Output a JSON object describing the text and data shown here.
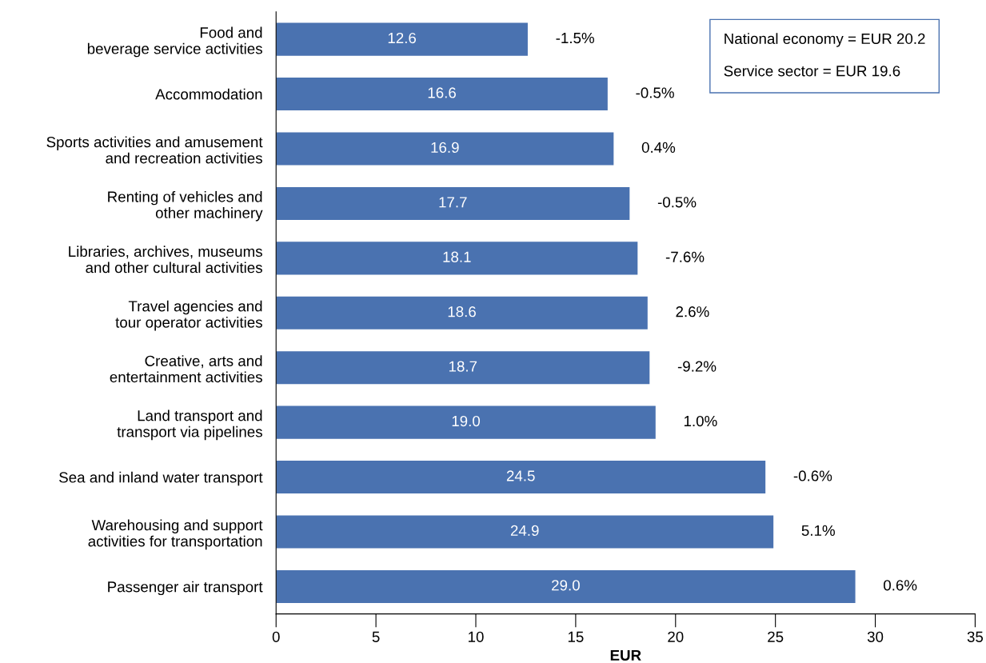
{
  "chart_data": {
    "type": "bar",
    "orientation": "horizontal",
    "xlabel": "EUR",
    "categories": [
      "Food and\nbeverage service activities",
      "Accommodation",
      "Sports activities and amusement\nand recreation activities",
      "Renting of vehicles and\nother machinery",
      "Libraries, archives, museums\nand other cultural activities",
      "Travel agencies and\ntour operator activities",
      "Creative, arts and\nentertainment activities",
      "Land transport and\ntransport via pipelines",
      "Sea and inland water transport",
      "Warehousing and support\nactivities for transportation",
      "Passenger air transport"
    ],
    "values": [
      12.6,
      16.6,
      16.9,
      17.7,
      18.1,
      18.6,
      18.7,
      19.0,
      24.5,
      24.9,
      29.0
    ],
    "value_labels": [
      "12.6",
      "16.6",
      "16.9",
      "17.7",
      "18.1",
      "18.6",
      "18.7",
      "19.0",
      "24.5",
      "24.9",
      "29.0"
    ],
    "color": "#4a72b0",
    "xlim": [
      0,
      35
    ],
    "xticks": [
      0,
      5,
      10,
      15,
      20,
      25,
      30,
      35
    ],
    "grid": false,
    "legend": false,
    "annotations": [
      {
        "text": "-1.5%",
        "x": 12.6,
        "y": "Food and\nbeverage service activities"
      },
      {
        "text": "-0.5%",
        "x": 16.6,
        "y": "Accommodation"
      },
      {
        "text": "0.4%",
        "x": 16.9,
        "y": "Sports activities and amusement\nand recreation activities"
      },
      {
        "text": "-0.5%",
        "x": 17.7,
        "y": "Renting of vehicles and\nother machinery"
      },
      {
        "text": "-7.6%",
        "x": 18.1,
        "y": "Libraries, archives, museums\nand other cultural activities"
      },
      {
        "text": "2.6%",
        "x": 18.6,
        "y": "Travel agencies and\ntour operator activities"
      },
      {
        "text": "-9.2%",
        "x": 18.7,
        "y": "Creative, arts and\nentertainment activities"
      },
      {
        "text": "1.0%",
        "x": 19.0,
        "y": "Land transport and\ntransport via pipelines"
      },
      {
        "text": "-0.6%",
        "x": 24.5,
        "y": "Sea and inland water transport"
      },
      {
        "text": "5.1%",
        "x": 24.9,
        "y": "Warehousing and support\nactivities for transportation"
      },
      {
        "text": "0.6%",
        "x": 29.0,
        "y": "Passenger air transport"
      },
      "National economy = EUR 20.2\n\nService sector = EUR 19.6"
    ]
  }
}
